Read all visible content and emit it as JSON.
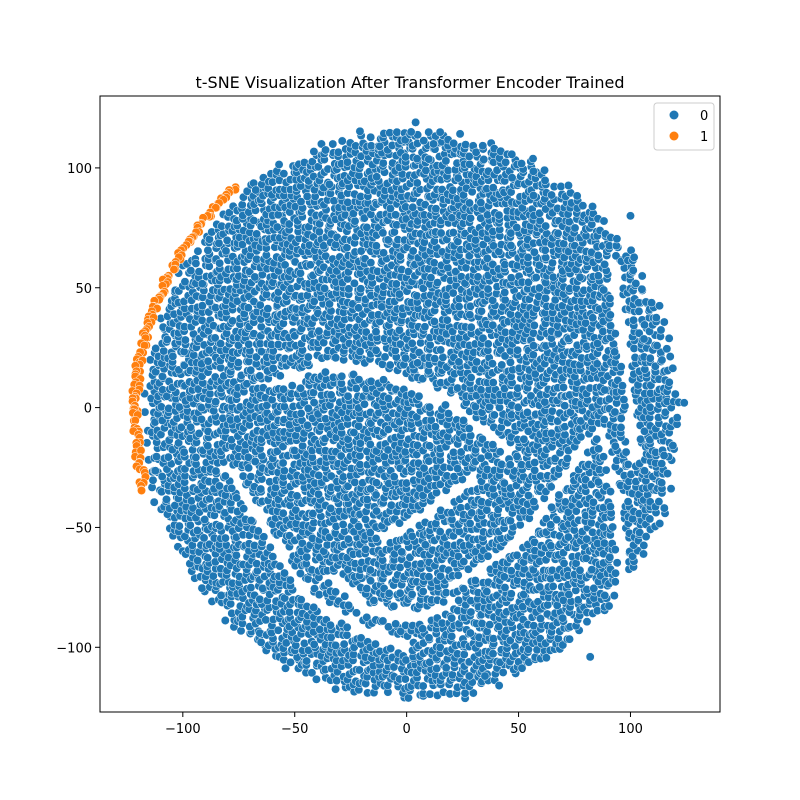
{
  "chart_data": {
    "type": "scatter",
    "title": "t-SNE Visualization After Transformer Encoder Trained",
    "xlabel": "",
    "ylabel": "",
    "xlim": [
      -137,
      140
    ],
    "ylim": [
      -127,
      130
    ],
    "x_ticks": [
      -100,
      -50,
      0,
      50,
      100
    ],
    "y_ticks": [
      100,
      50,
      0,
      -50,
      -100
    ],
    "x_tick_labels": [
      "−100",
      "−50",
      "0",
      "50",
      "100"
    ],
    "y_tick_labels": [
      "100",
      "50",
      "0",
      "−50",
      "−100"
    ],
    "grid": false,
    "legend_position": "top-right",
    "series": [
      {
        "name": "0",
        "color": "#1f77b4",
        "region": {
          "center": [
            2,
            -3
          ],
          "radius": 121
        },
        "gaps": [
          [
            [
              -60,
              10
            ],
            [
              -35,
              18
            ],
            [
              -10,
              15
            ],
            [
              20,
              2
            ],
            [
              45,
              -18
            ]
          ],
          [
            [
              -80,
              -25
            ],
            [
              -60,
              -55
            ],
            [
              -45,
              -78
            ],
            [
              -20,
              -93
            ],
            [
              0,
              -100
            ]
          ],
          [
            [
              -35,
              -70
            ],
            [
              -15,
              -85
            ],
            [
              5,
              -88
            ],
            [
              20,
              -82
            ]
          ],
          [
            [
              20,
              -75
            ],
            [
              45,
              -60
            ],
            [
              60,
              -45
            ],
            [
              70,
              -30
            ],
            [
              80,
              -15
            ]
          ],
          [
            [
              -10,
              -55
            ],
            [
              15,
              -40
            ],
            [
              30,
              -30
            ]
          ],
          [
            [
              92,
              60
            ],
            [
              95,
              40
            ],
            [
              98,
              20
            ],
            [
              100,
              0
            ],
            [
              102,
              -20
            ]
          ],
          [
            [
              88,
              -10
            ],
            [
              93,
              -35
            ],
            [
              96,
              -55
            ],
            [
              98,
              -75
            ]
          ]
        ],
        "extra_points": [
          [
            4,
            119
          ],
          [
            2,
            115
          ],
          [
            -12,
            109
          ],
          [
            82,
            -104
          ],
          [
            12,
            110
          ],
          [
            100,
            80
          ],
          [
            28,
            -112
          ],
          [
            35,
            -112
          ],
          [
            115,
            -20
          ],
          [
            124,
            2
          ]
        ]
      },
      {
        "name": "1",
        "color": "#ff7f0e",
        "arc": [
          [
            -76,
            92
          ],
          [
            -85,
            84
          ],
          [
            -95,
            73
          ],
          [
            -103,
            62
          ],
          [
            -110,
            48
          ],
          [
            -115,
            36
          ],
          [
            -119,
            22
          ],
          [
            -121,
            8
          ],
          [
            -121,
            -5
          ],
          [
            -120,
            -20
          ],
          [
            -117,
            -36
          ]
        ]
      }
    ]
  }
}
